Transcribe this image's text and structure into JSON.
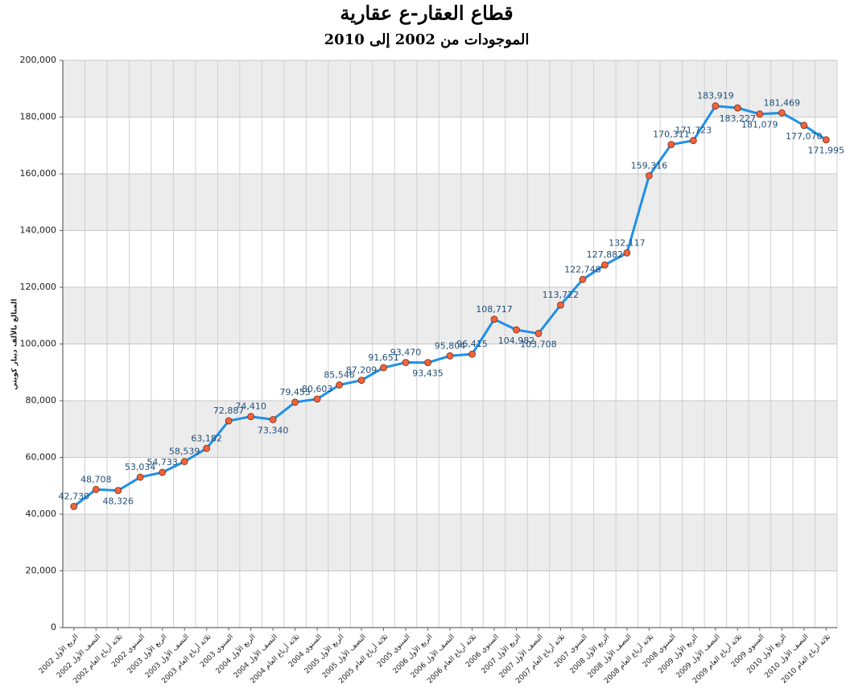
{
  "chart_data": {
    "type": "line",
    "title": "قطاع العقار-ع عقارية",
    "subtitle": "الموجودات من 2002 إلى 2010",
    "y_label": "المبالغ بالألف دينار كويتي",
    "categories": [
      "الربع الأول 2002",
      "النصف الأول 2002",
      "ثلاثة أرباع العام 2002",
      "السنوي 2002",
      "الربع الأول 2003",
      "النصف الأول 2003",
      "ثلاثة أرباع العام 2003",
      "السنوي 2003",
      "الربع الأول 2004",
      "النصف الأول 2004",
      "ثلاثة أرباع العام 2004",
      "السنوي 2004",
      "الربع الأول 2005",
      "النصف الأول 2005",
      "ثلاثة أرباع العام 2005",
      "السنوي 2005",
      "الربع الأول 2006",
      "النصف الأول 2006",
      "ثلاثة أرباع العام 2006",
      "السنوي 2006",
      "الربع الأول 2007",
      "النصف الأول 2007",
      "ثلاثة أرباع العام 2007",
      "السنوي 2007",
      "الربع الأول 2008",
      "النصف الأول 2008",
      "ثلاثة أرباع العام 2008",
      "السنوي 2008",
      "الربع الأول 2009",
      "النصف الأول 2009",
      "ثلاثة أرباع العام 2009",
      "السنوي 2009",
      "الربع الأول 2010",
      "النصف الأول 2010",
      "ثلاثة أرباع العام 2010"
    ],
    "series": [
      {
        "color": "#1e90e8",
        "marker_color": "#f0643c",
        "values": [
          42730,
          48708,
          48326,
          53034,
          54733,
          58539,
          63182,
          72887,
          74410,
          73340,
          79455,
          80603,
          85546,
          87209,
          91651,
          93470,
          93435,
          95804,
          96415,
          108717,
          104982,
          103708,
          113722,
          122748,
          127882,
          132117,
          159316,
          170311,
          171723,
          183919,
          183227,
          181079,
          181469,
          177070,
          171995
        ],
        "value_labels": [
          "42,730",
          "48,708",
          "48,326",
          "53,034",
          "54,733",
          "58,539",
          "63,182",
          "72,887",
          "74,410",
          "73,340",
          "79,455",
          "80,603",
          "85,546",
          "87,209",
          "91,651",
          "93,470",
          "93,435",
          "95,804",
          "96,415",
          "108,717",
          "104,982",
          "103,708",
          "113,722",
          "122,748",
          "127,882",
          "132,117",
          "159,316",
          "170,311",
          "171,723",
          "183,919",
          "183,227",
          "181,079",
          "181,469",
          "177,070",
          "171,995"
        ]
      }
    ],
    "ylim": [
      0,
      200000
    ],
    "yticks": [
      {
        "value": 0,
        "label": "0"
      },
      {
        "value": 20000,
        "label": "20,000"
      },
      {
        "value": 40000,
        "label": "40,000"
      },
      {
        "value": 60000,
        "label": "60,000"
      },
      {
        "value": 80000,
        "label": "80,000"
      },
      {
        "value": 100000,
        "label": "100,000"
      },
      {
        "value": 120000,
        "label": "120,000"
      },
      {
        "value": 140000,
        "label": "140,000"
      },
      {
        "value": 160000,
        "label": "160,000"
      },
      {
        "value": 180000,
        "label": "180,000"
      },
      {
        "value": 200000,
        "label": "200,000"
      }
    ],
    "grid": true
  }
}
